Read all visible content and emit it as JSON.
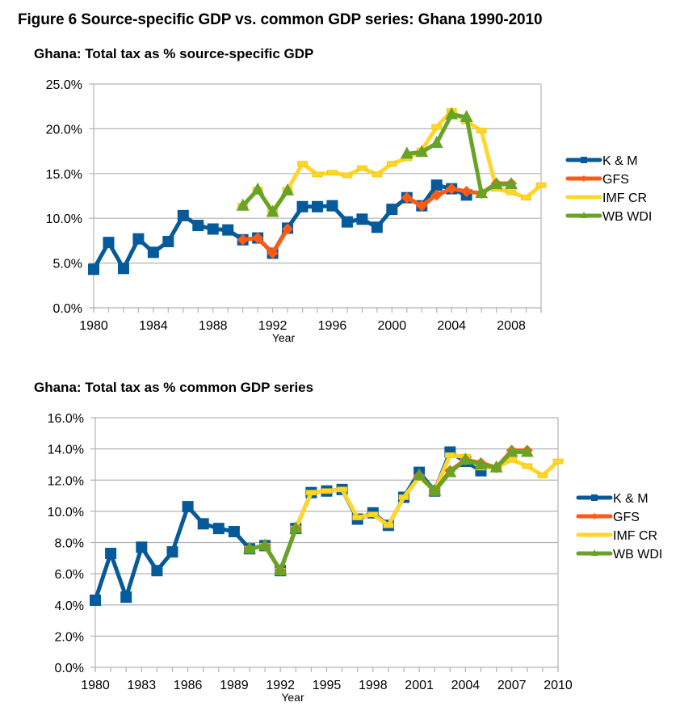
{
  "figure": {
    "title": "Figure 6 Source-specific GDP vs. common GDP series: Ghana 1990-2010"
  },
  "series_style": [
    {
      "name": "K & M",
      "color": "#045a9a",
      "marker": "square"
    },
    {
      "name": "GFS",
      "color": "#ff5a14",
      "marker": "diamond"
    },
    {
      "name": "IMF CR",
      "color": "#ffd62a",
      "marker": "dash"
    },
    {
      "name": "WB WDI",
      "color": "#66a326",
      "marker": "triangle"
    }
  ],
  "chart_data": [
    {
      "type": "line",
      "title": "Ghana: Total tax as % source-specific GDP",
      "xlabel": "Year",
      "ylabel": "",
      "x_range": [
        1980,
        2010
      ],
      "x_tick_labels": [
        "1980",
        "1984",
        "1988",
        "1992",
        "1996",
        "2000",
        "2004",
        "2008"
      ],
      "x_tick_step": 4,
      "ylim": [
        0,
        25
      ],
      "y_tick_labels": [
        "0.0%",
        "5.0%",
        "10.0%",
        "15.0%",
        "20.0%",
        "25.0%"
      ],
      "y_tick_step": 5,
      "grid": "horizontal",
      "legend_position": "right",
      "series": [
        {
          "name": "K & M",
          "x": [
            1980,
            1981,
            1982,
            1983,
            1984,
            1985,
            1986,
            1987,
            1988,
            1989,
            1990,
            1991,
            1992,
            1993,
            1994,
            1995,
            1996,
            1997,
            1998,
            1999,
            2000,
            2001,
            2002,
            2003,
            2004,
            2005
          ],
          "values": [
            4.3,
            7.3,
            4.4,
            7.7,
            6.2,
            7.4,
            10.3,
            9.2,
            8.8,
            8.7,
            7.6,
            7.8,
            6.1,
            8.9,
            11.3,
            11.3,
            11.4,
            9.6,
            9.9,
            9.0,
            11.0,
            12.3,
            11.4,
            13.7,
            13.3,
            12.6
          ]
        },
        {
          "name": "GFS",
          "x": [
            1990,
            1991,
            1992,
            1993,
            2001,
            2002,
            2003,
            2004,
            2005,
            2006,
            2007,
            2008
          ],
          "values": [
            7.6,
            7.8,
            6.1,
            8.8,
            12.3,
            11.4,
            12.6,
            13.3,
            13.0,
            12.8,
            13.9,
            13.9
          ]
        },
        {
          "name": "IMF CR",
          "x": [
            1990,
            1991,
            1992,
            1993,
            1994,
            1995,
            1996,
            1997,
            1998,
            1999,
            2000,
            2001,
            2002,
            2003,
            2004,
            2005,
            2006,
            2007,
            2008,
            2009,
            2010
          ],
          "values": [
            11.4,
            13.2,
            10.8,
            13.2,
            16.1,
            14.9,
            15.1,
            14.8,
            15.6,
            14.9,
            16.1,
            16.7,
            17.6,
            20.2,
            22.0,
            20.8,
            19.8,
            13.3,
            12.9,
            12.3,
            13.7
          ]
        },
        {
          "name": "WB WDI",
          "x": [
            1990,
            1991,
            1992,
            1993,
            2001,
            2002,
            2003,
            2004,
            2005,
            2006,
            2007,
            2008
          ],
          "values": [
            11.4,
            13.2,
            10.7,
            13.1,
            17.2,
            17.4,
            18.4,
            21.6,
            21.3,
            12.8,
            13.8,
            13.8
          ]
        }
      ]
    },
    {
      "type": "line",
      "title": "Ghana: Total tax as % common GDP series",
      "xlabel": "Year",
      "ylabel": "",
      "x_range": [
        1980,
        2010
      ],
      "x_tick_labels": [
        "1980",
        "1983",
        "1986",
        "1989",
        "1992",
        "1995",
        "1998",
        "2001",
        "2004",
        "2007",
        "2010"
      ],
      "x_tick_step": 3,
      "ylim": [
        0,
        16
      ],
      "y_tick_labels": [
        "0.0%",
        "2.0%",
        "4.0%",
        "6.0%",
        "8.0%",
        "10.0%",
        "12.0%",
        "14.0%",
        "16.0%"
      ],
      "y_tick_step": 2,
      "grid": "horizontal",
      "legend_position": "right",
      "series": [
        {
          "name": "K & M",
          "x": [
            1980,
            1981,
            1982,
            1983,
            1984,
            1985,
            1986,
            1987,
            1988,
            1989,
            1990,
            1991,
            1992,
            1993,
            1994,
            1995,
            1996,
            1997,
            1998,
            1999,
            2000,
            2001,
            2002,
            2003,
            2004,
            2005
          ],
          "values": [
            4.3,
            7.3,
            4.5,
            7.7,
            6.2,
            7.4,
            10.3,
            9.2,
            8.9,
            8.7,
            7.6,
            7.8,
            6.2,
            8.9,
            11.2,
            11.3,
            11.4,
            9.5,
            9.9,
            9.1,
            10.9,
            12.5,
            11.3,
            13.8,
            13.2,
            12.6
          ]
        },
        {
          "name": "GFS",
          "x": [
            1990,
            1991,
            1992,
            1993,
            2001,
            2002,
            2003,
            2004,
            2005,
            2006,
            2007,
            2008
          ],
          "values": [
            7.6,
            7.8,
            6.2,
            8.9,
            12.3,
            11.3,
            12.6,
            13.3,
            13.1,
            12.8,
            13.9,
            13.9
          ]
        },
        {
          "name": "IMF CR",
          "x": [
            1990,
            1991,
            1992,
            1993,
            1994,
            1995,
            1996,
            1997,
            1998,
            1999,
            2000,
            2001,
            2002,
            2003,
            2004,
            2005,
            2006,
            2007,
            2008,
            2009,
            2010
          ],
          "values": [
            7.6,
            7.8,
            6.2,
            8.9,
            11.2,
            11.3,
            11.4,
            9.6,
            9.8,
            9.1,
            10.9,
            12.2,
            11.3,
            13.6,
            13.5,
            12.8,
            12.8,
            13.3,
            12.9,
            12.3,
            13.2
          ]
        },
        {
          "name": "WB WDI",
          "x": [
            1990,
            1991,
            1992,
            1993,
            2001,
            2002,
            2003,
            2004,
            2005,
            2006,
            2007,
            2008
          ],
          "values": [
            7.6,
            7.8,
            6.2,
            8.9,
            12.3,
            11.3,
            12.5,
            13.3,
            13.0,
            12.8,
            13.8,
            13.8
          ]
        }
      ]
    }
  ]
}
